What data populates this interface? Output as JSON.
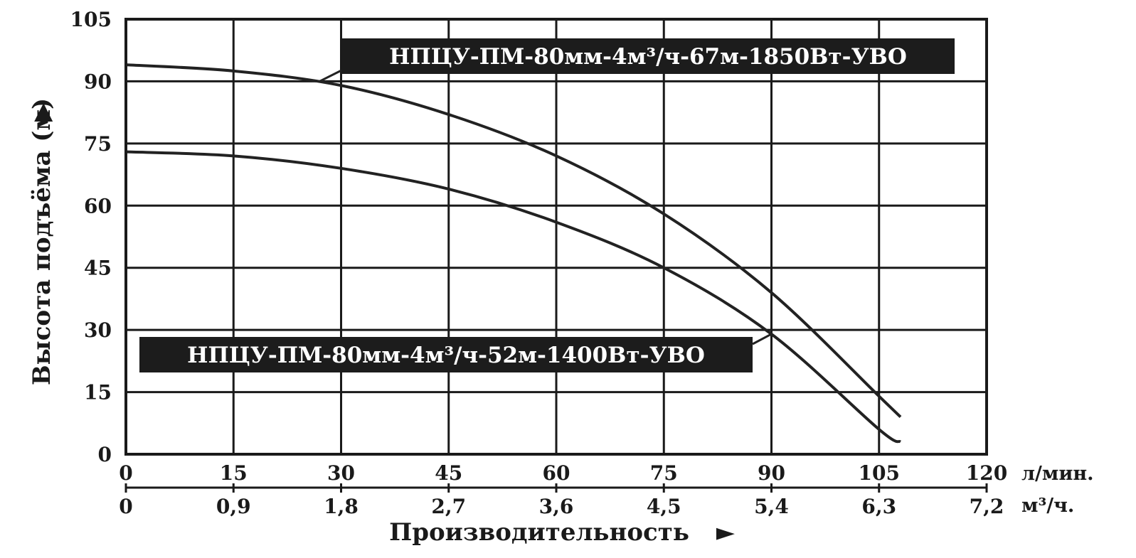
{
  "chart_data": {
    "type": "line",
    "ylabel": "Высота подъёма (м)",
    "ylabel_arrow": "▶",
    "xlabel": "Производительность",
    "xlabel_arrow": "►",
    "ylim": [
      0,
      105
    ],
    "xlim": [
      0,
      120
    ],
    "yticks": [
      "0",
      "15",
      "30",
      "45",
      "60",
      "75",
      "90",
      "105"
    ],
    "xticks": [
      "0",
      "15",
      "30",
      "45",
      "60",
      "75",
      "90",
      "105",
      "120"
    ],
    "x_unit": "л/мин.",
    "x2ticks": [
      "0",
      "0,9",
      "1,8",
      "2,7",
      "3,6",
      "4,5",
      "5,4",
      "6,3",
      "7,2"
    ],
    "x2_unit": "м³/ч.",
    "grid": true,
    "series": [
      {
        "name": "НПЦУ-ПМ-80мм-4м³/ч-67м-1850Вт-УВО",
        "x": [
          0,
          15,
          30,
          45,
          60,
          75,
          90,
          105,
          108
        ],
        "y": [
          94,
          92.5,
          89,
          82,
          72,
          58,
          39,
          14,
          9
        ]
      },
      {
        "name": "НПЦУ-ПМ-80мм-4м³/ч-52м-1400Вт-УВО",
        "x": [
          0,
          15,
          30,
          45,
          60,
          75,
          90,
          105,
          108
        ],
        "y": [
          73,
          72,
          69,
          64,
          56,
          45,
          29,
          6,
          3
        ]
      }
    ]
  }
}
